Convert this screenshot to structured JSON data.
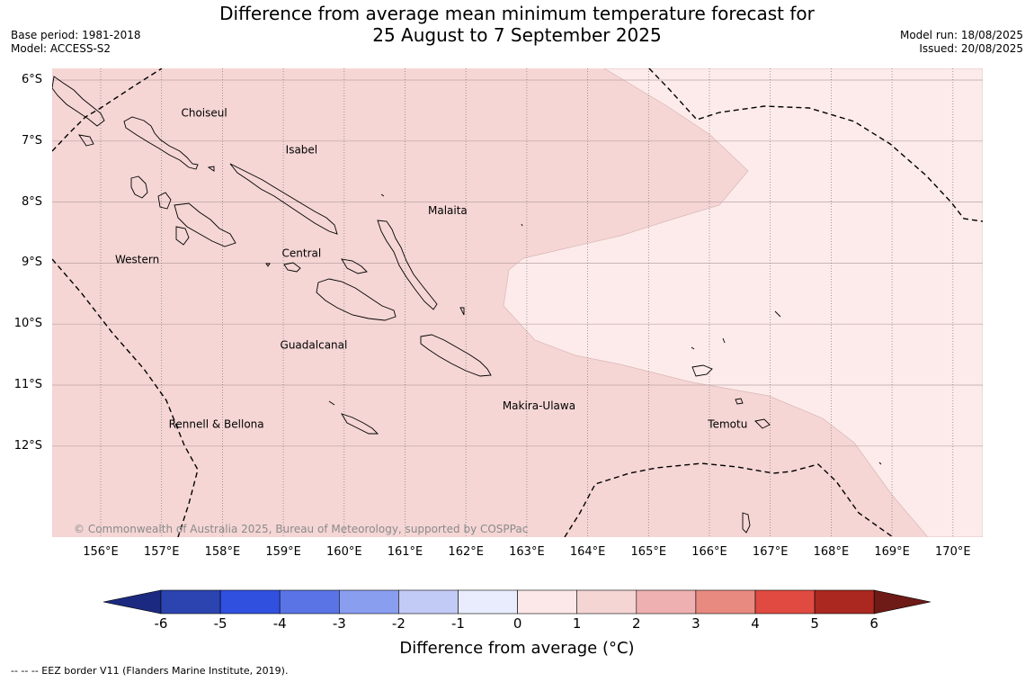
{
  "title_line1": "Difference from average mean minimum temperature forecast for",
  "title_line2": "25 August to 7 September 2025",
  "base_period": "Base period: 1981-2018",
  "model": "Model: ACCESS-S2",
  "model_run": "Model run: 18/08/2025",
  "issued": "Issued: 20/08/2025",
  "lat_labels": [
    "6°S",
    "7°S",
    "8°S",
    "9°S",
    "10°S",
    "11°S",
    "12°S"
  ],
  "lon_labels": [
    "156°E",
    "157°E",
    "158°E",
    "159°E",
    "160°E",
    "161°E",
    "162°E",
    "163°E",
    "164°E",
    "165°E",
    "166°E",
    "167°E",
    "168°E",
    "169°E",
    "170°E"
  ],
  "places": [
    {
      "name": "Choiseul",
      "lon": 157.7,
      "lat": 6.6
    },
    {
      "name": "Isabel",
      "lon": 159.3,
      "lat": 7.2
    },
    {
      "name": "Malaita",
      "lon": 161.7,
      "lat": 8.2
    },
    {
      "name": "Western",
      "lon": 156.6,
      "lat": 9.0
    },
    {
      "name": "Central",
      "lon": 159.3,
      "lat": 8.9
    },
    {
      "name": "Guadalcanal",
      "lon": 159.5,
      "lat": 10.4
    },
    {
      "name": "Makira-Ulawa",
      "lon": 163.2,
      "lat": 11.4
    },
    {
      "name": "Rennell & Bellona",
      "lon": 157.9,
      "lat": 11.7
    },
    {
      "name": "Temotu",
      "lon": 166.3,
      "lat": 11.7
    }
  ],
  "copyright": "© Commonwealth of Australia 2025, Bureau of Meteorology, supported by COSPPac",
  "colorbar": {
    "ticks": [
      "-6",
      "-5",
      "-4",
      "-3",
      "-2",
      "-1",
      "0",
      "1",
      "2",
      "3",
      "4",
      "5",
      "6"
    ],
    "colors": {
      "below_min": "#1b2a80",
      "bins": [
        "#2b44b0",
        "#3050e0",
        "#5a74e6",
        "#8a9ef0",
        "#c2caf6",
        "#e8ecfc",
        "#fce8e8",
        "#f5d4d4",
        "#eeb0b0",
        "#e88a80",
        "#e04a40",
        "#aa2820"
      ],
      "above_max": "#6e1a16"
    },
    "label": "Difference from average (°C)"
  },
  "map_fill": {
    "zone_0_1": "#fcebea",
    "zone_1_2": "#f5d6d5"
  },
  "footnote": "-- -- -- EEZ border V11 (Flanders Marine Institute, 2019)."
}
